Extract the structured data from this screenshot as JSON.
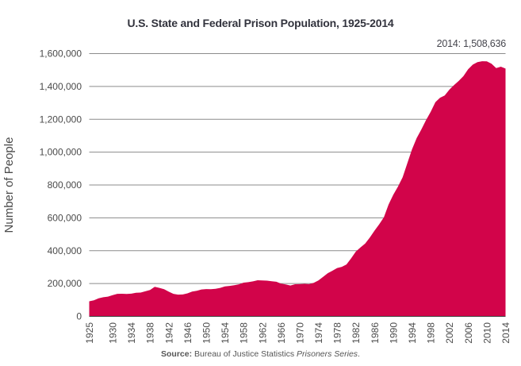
{
  "chart_data": {
    "type": "area",
    "title": "U.S. State and Federal Prison Population, 1925-2014",
    "annotation": "2014: 1,508,636",
    "ylabel": "Number of People",
    "xlabel": "",
    "ylim": [
      0,
      1600000
    ],
    "xlim": [
      1925,
      2014
    ],
    "grid": "horizontal",
    "legend": "none",
    "y_tick_values": [
      0,
      200000,
      400000,
      600000,
      800000,
      1000000,
      1200000,
      1400000,
      1600000
    ],
    "y_tick_labels": [
      "0",
      "200,000",
      "400,000",
      "600,000",
      "800,000",
      "1,000,000",
      "1,200,000",
      "1,400,000",
      "1,600,000"
    ],
    "x_tick_years": [
      1925,
      1930,
      1934,
      1938,
      1942,
      1946,
      1950,
      1954,
      1958,
      1962,
      1966,
      1970,
      1974,
      1978,
      1982,
      1986,
      1990,
      1994,
      1998,
      2002,
      2006,
      2010,
      2014
    ],
    "series": [
      {
        "name": "U.S. state and federal prison population",
        "years": [
          1925,
          1926,
          1927,
          1928,
          1929,
          1930,
          1931,
          1932,
          1933,
          1934,
          1935,
          1936,
          1937,
          1938,
          1939,
          1940,
          1941,
          1942,
          1943,
          1944,
          1945,
          1946,
          1947,
          1948,
          1949,
          1950,
          1951,
          1952,
          1953,
          1954,
          1955,
          1956,
          1957,
          1958,
          1959,
          1960,
          1961,
          1962,
          1963,
          1964,
          1965,
          1966,
          1967,
          1968,
          1969,
          1970,
          1971,
          1972,
          1973,
          1974,
          1975,
          1976,
          1977,
          1978,
          1979,
          1980,
          1981,
          1982,
          1983,
          1984,
          1985,
          1986,
          1987,
          1988,
          1989,
          1990,
          1991,
          1992,
          1993,
          1994,
          1995,
          1996,
          1997,
          1998,
          1999,
          2000,
          2001,
          2002,
          2003,
          2004,
          2005,
          2006,
          2007,
          2008,
          2009,
          2010,
          2011,
          2012,
          2013,
          2014
        ],
        "values": [
          91669,
          97991,
          109983,
          116390,
          120496,
          129453,
          137082,
          137997,
          136810,
          138316,
          144180,
          145038,
          152741,
          160285,
          179818,
          173706,
          165439,
          150384,
          137220,
          132456,
          133649,
          140079,
          151304,
          155977,
          163749,
          166123,
          165680,
          168233,
          173579,
          182901,
          185780,
          189565,
          195414,
          205643,
          208105,
          212953,
          220149,
          218830,
          217283,
          214336,
          210895,
          199654,
          194896,
          187914,
          196007,
          196429,
          198061,
          196092,
          204211,
          218466,
          240593,
          262833,
          278141,
          294396,
          301470,
          315974,
          353167,
          394374,
          419820,
          443398,
          480568,
          522084,
          560812,
          603732,
          680907,
          739980,
          789610,
          846277,
          932074,
          1016691,
          1085022,
          1137722,
          1194581,
          1245402,
          1304074,
          1331278,
          1345217,
          1380516,
          1408361,
          1433728,
          1462866,
          1504660,
          1532851,
          1547742,
          1553574,
          1552669,
          1538847,
          1511480,
          1520403,
          1508636
        ]
      }
    ]
  },
  "source": {
    "prefix": "Source:",
    "body": "Bureau of Justice Statistics",
    "italic": "Prisoners Series",
    "suffix": "."
  },
  "colors": {
    "area": "#d2044a",
    "grid": "#8c8c8c",
    "baseline": "#3e3e3e",
    "title": "#32333d",
    "tick_text": "#4b4b4b",
    "annotation_text": "#45454d",
    "source_text": "#555555"
  }
}
